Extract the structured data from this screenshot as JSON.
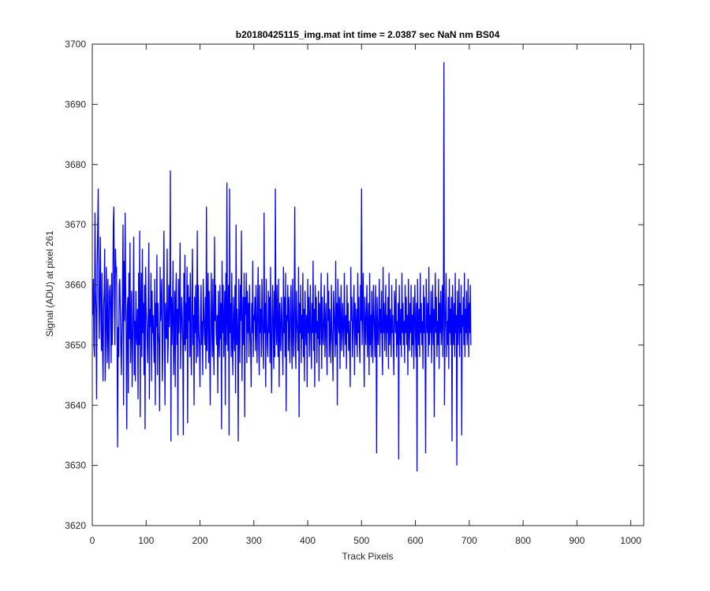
{
  "chart_data": {
    "type": "line",
    "title": "b20180425115_img.mat int time = 2.0387 sec  NaN nm BS04",
    "xlabel": "Track Pixels",
    "ylabel": "Signal (ADU) at pixel 261",
    "xlim": [
      0,
      1024
    ],
    "ylim": [
      3620,
      3700
    ],
    "xticks": [
      0,
      100,
      200,
      300,
      400,
      500,
      600,
      700,
      800,
      900,
      1000
    ],
    "yticks": [
      3620,
      3630,
      3640,
      3650,
      3660,
      3670,
      3680,
      3690,
      3700
    ],
    "grid": false,
    "series": [
      {
        "color": "#0000ff",
        "x_start": 1,
        "x_step": 1,
        "values": [
          3655,
          3661,
          3650,
          3648,
          3672,
          3659,
          3655,
          3641,
          3663,
          3669,
          3676,
          3658,
          3651,
          3660,
          3668,
          3655,
          3649,
          3662,
          3650,
          3644,
          3656,
          3659,
          3666,
          3644,
          3650,
          3663,
          3654,
          3647,
          3661,
          3652,
          3646,
          3659,
          3660,
          3656,
          3647,
          3662,
          3650,
          3657,
          3670,
          3673,
          3659,
          3650,
          3666,
          3662,
          3663,
          3651,
          3633,
          3653,
          3648,
          3660,
          3661,
          3656,
          3650,
          3645,
          3652,
          3658,
          3670,
          3640,
          3664,
          3654,
          3672,
          3660,
          3650,
          3636,
          3656,
          3658,
          3642,
          3662,
          3651,
          3667,
          3647,
          3654,
          3659,
          3643,
          3650,
          3656,
          3668,
          3645,
          3654,
          3644,
          3659,
          3652,
          3650,
          3656,
          3641,
          3662,
          3650,
          3669,
          3638,
          3656,
          3662,
          3648,
          3666,
          3652,
          3657,
          3645,
          3660,
          3636,
          3663,
          3656,
          3654,
          3650,
          3647,
          3658,
          3667,
          3641,
          3656,
          3653,
          3662,
          3644,
          3659,
          3652,
          3655,
          3650,
          3647,
          3661,
          3640,
          3657,
          3653,
          3665,
          3645,
          3657,
          3652,
          3650,
          3639,
          3663,
          3654,
          3657,
          3661,
          3644,
          3649,
          3658,
          3669,
          3653,
          3640,
          3657,
          3652,
          3651,
          3666,
          3647,
          3650,
          3660,
          3653,
          3658,
          3679,
          3634,
          3658,
          3650,
          3656,
          3664,
          3645,
          3652,
          3659,
          3643,
          3658,
          3662,
          3650,
          3656,
          3635,
          3661,
          3652,
          3657,
          3667,
          3646,
          3652,
          3658,
          3655,
          3650,
          3635,
          3662,
          3650,
          3665,
          3649,
          3657,
          3651,
          3663,
          3637,
          3660,
          3654,
          3658,
          3648,
          3662,
          3650,
          3645,
          3658,
          3666,
          3650,
          3655,
          3640,
          3658,
          3652,
          3660,
          3647,
          3654,
          3669,
          3648,
          3660,
          3652,
          3650,
          3643,
          3655,
          3660,
          3650,
          3654,
          3645,
          3661,
          3656,
          3652,
          3650,
          3658,
          3646,
          3673,
          3649,
          3655,
          3662,
          3647,
          3659,
          3650,
          3640,
          3656,
          3662,
          3652,
          3648,
          3661,
          3650,
          3645,
          3668,
          3654,
          3660,
          3652,
          3650,
          3655,
          3642,
          3659,
          3652,
          3648,
          3660,
          3651,
          3657,
          3636,
          3664,
          3652,
          3660,
          3648,
          3654,
          3659,
          3640,
          3662,
          3650,
          3677,
          3654,
          3649,
          3660,
          3635,
          3676,
          3652,
          3657,
          3648,
          3662,
          3650,
          3645,
          3658,
          3653,
          3649,
          3660,
          3642,
          3670,
          3650,
          3656,
          3652,
          3634,
          3661,
          3653,
          3647,
          3660,
          3654,
          3669,
          3644,
          3652,
          3658,
          3650,
          3662,
          3638,
          3658,
          3655,
          3662,
          3647,
          3659,
          3652,
          3657,
          3648,
          3660,
          3653,
          3650,
          3643,
          3657,
          3652,
          3664,
          3648,
          3655,
          3654,
          3658,
          3649,
          3660,
          3653,
          3647,
          3657,
          3663,
          3650,
          3645,
          3660,
          3652,
          3656,
          3648,
          3661,
          3655,
          3650,
          3646,
          3672,
          3652,
          3657,
          3643,
          3661,
          3654,
          3650,
          3648,
          3659,
          3652,
          3658,
          3647,
          3663,
          3650,
          3642,
          3655,
          3660,
          3652,
          3646,
          3659,
          3648,
          3676,
          3654,
          3650,
          3660,
          3652,
          3648,
          3661,
          3643,
          3657,
          3652,
          3649,
          3658,
          3655,
          3650,
          3645,
          3663,
          3652,
          3658,
          3648,
          3662,
          3639,
          3655,
          3654,
          3660,
          3649,
          3658,
          3652,
          3647,
          3657,
          3660,
          3651,
          3646,
          3661,
          3653,
          3648,
          3657,
          3673,
          3650,
          3646,
          3659,
          3654,
          3652,
          3649,
          3663,
          3638,
          3657,
          3652,
          3660,
          3647,
          3655,
          3651,
          3662,
          3648,
          3656,
          3644,
          3659,
          3653,
          3650,
          3655,
          3643,
          3661,
          3652,
          3658,
          3648,
          3654,
          3660,
          3650,
          3646,
          3657,
          3652,
          3664,
          3649,
          3656,
          3643,
          3660,
          3652,
          3658,
          3647,
          3654,
          3651,
          3659,
          3644,
          3657,
          3650,
          3655,
          3662,
          3646,
          3658,
          3652,
          3650,
          3655,
          3660,
          3648,
          3653,
          3657,
          3650,
          3645,
          3662,
          3654,
          3659,
          3648,
          3656,
          3652,
          3647,
          3660,
          3653,
          3650,
          3644,
          3659,
          3656,
          3652,
          3648,
          3664,
          3650,
          3657,
          3640,
          3661,
          3655,
          3652,
          3658,
          3646,
          3655,
          3660,
          3649,
          3653,
          3657,
          3651,
          3648,
          3662,
          3654,
          3650,
          3655,
          3646,
          3660,
          3652,
          3657,
          3649,
          3654,
          3650,
          3643,
          3663,
          3654,
          3658,
          3648,
          3652,
          3656,
          3660,
          3645,
          3657,
          3653,
          3650,
          3656,
          3648,
          3662,
          3652,
          3658,
          3650,
          3647,
          3660,
          3654,
          3676,
          3650,
          3655,
          3662,
          3652,
          3643,
          3658,
          3654,
          3650,
          3656,
          3660,
          3648,
          3653,
          3657,
          3645,
          3662,
          3650,
          3655,
          3648,
          3659,
          3653,
          3647,
          3660,
          3656,
          3652,
          3648,
          3660,
          3654,
          3632,
          3658,
          3652,
          3650,
          3655,
          3661,
          3648,
          3656,
          3652,
          3659,
          3650,
          3645,
          3663,
          3652,
          3657,
          3649,
          3654,
          3660,
          3648,
          3655,
          3652,
          3658,
          3646,
          3662,
          3650,
          3656,
          3653,
          3648,
          3660,
          3652,
          3655,
          3650,
          3645,
          3659,
          3656,
          3652,
          3661,
          3648,
          3654,
          3650,
          3657,
          3631,
          3660,
          3654,
          3650,
          3656,
          3648,
          3662,
          3652,
          3657,
          3650,
          3654,
          3647,
          3660,
          3652,
          3658,
          3650,
          3655,
          3645,
          3661,
          3653,
          3649,
          3657,
          3652,
          3660,
          3648,
          3655,
          3650,
          3658,
          3646,
          3654,
          3660,
          3652,
          3648,
          3657,
          3629,
          3661,
          3654,
          3650,
          3656,
          3648,
          3662,
          3652,
          3657,
          3650,
          3654,
          3646,
          3660,
          3652,
          3658,
          3650,
          3632,
          3661,
          3655,
          3652,
          3657,
          3648,
          3663,
          3650,
          3655,
          3652,
          3659,
          3647,
          3654,
          3660,
          3650,
          3656,
          3638,
          3655,
          3662,
          3652,
          3658,
          3648,
          3654,
          3650,
          3661,
          3646,
          3657,
          3652,
          3659,
          3650,
          3654,
          3660,
          3648,
          3657,
          3697,
          3640,
          3652,
          3656,
          3662,
          3648,
          3654,
          3650,
          3658,
          3646,
          3661,
          3652,
          3656,
          3650,
          3658,
          3634,
          3660,
          3654,
          3650,
          3657,
          3648,
          3662,
          3652,
          3655,
          3630,
          3659,
          3650,
          3654,
          3661,
          3648,
          3657,
          3652,
          3660,
          3635,
          3655,
          3653,
          3658,
          3650,
          3662,
          3648,
          3656,
          3652,
          3659,
          3650,
          3654,
          3661,
          3648,
          3657,
          3652,
          3660,
          3650
        ]
      }
    ]
  }
}
